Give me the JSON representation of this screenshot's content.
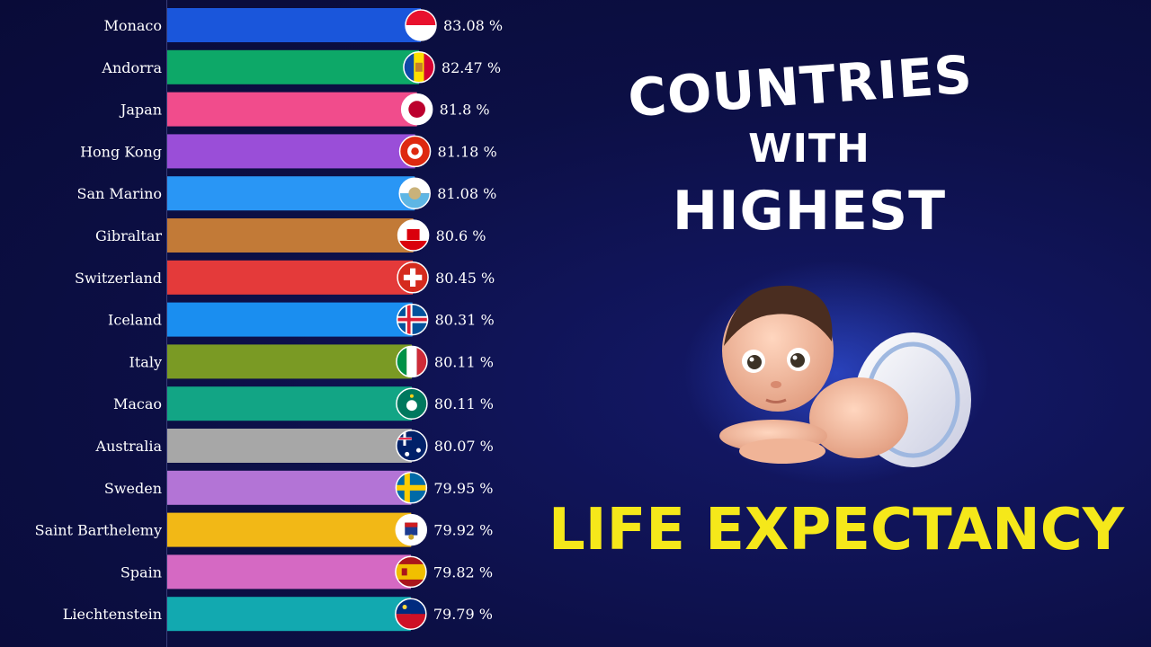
{
  "title": {
    "line1": "COUNTRIES",
    "line2": "WITH",
    "line3": "HIGHEST",
    "line4": "LIFE EXPECTANCY"
  },
  "colors": {
    "background": "#0c0f45",
    "title": "#ffffff",
    "highlight": "#f5e81a"
  },
  "chart_data": {
    "type": "bar",
    "orientation": "horizontal",
    "title": "COUNTRIES WITH HIGHEST LIFE EXPECTANCY",
    "value_suffix": " %",
    "grid": false,
    "categories": [
      "Monaco",
      "Andorra",
      "Japan",
      "Hong Kong",
      "San Marino",
      "Gibraltar",
      "Switzerland",
      "Iceland",
      "Italy",
      "Macao",
      "Australia",
      "Sweden",
      "Saint Barthelemy",
      "Spain",
      "Liechtenstein"
    ],
    "values": [
      83.08,
      82.47,
      81.8,
      81.18,
      81.08,
      80.6,
      80.45,
      80.31,
      80.11,
      80.11,
      80.07,
      79.95,
      79.92,
      79.82,
      79.79
    ],
    "value_labels": [
      "83.08 %",
      "82.47 %",
      "81.8 %",
      "81.18 %",
      "81.08 %",
      "80.6 %",
      "80.45 %",
      "80.31 %",
      "80.11 %",
      "80.11 %",
      "80.07 %",
      "79.95 %",
      "79.92 %",
      "79.82 %",
      "79.79 %"
    ],
    "bar_colors": [
      "#1a56db",
      "#0da868",
      "#f14c8c",
      "#9a4ed8",
      "#2996f5",
      "#c27a37",
      "#e43a3a",
      "#1a8ef0",
      "#7a9a24",
      "#12a585",
      "#a7a7a7",
      "#b374d6",
      "#f2b816",
      "#d569c3",
      "#12a9b0"
    ],
    "flags": [
      "monaco-flag-icon",
      "andorra-flag-icon",
      "japan-flag-icon",
      "hong-kong-flag-icon",
      "san-marino-flag-icon",
      "gibraltar-flag-icon",
      "switzerland-flag-icon",
      "iceland-flag-icon",
      "italy-flag-icon",
      "macao-flag-icon",
      "australia-flag-icon",
      "sweden-flag-icon",
      "saint-barthelemy-flag-icon",
      "spain-flag-icon",
      "liechtenstein-flag-icon"
    ],
    "xlim": [
      0,
      83.08
    ]
  }
}
